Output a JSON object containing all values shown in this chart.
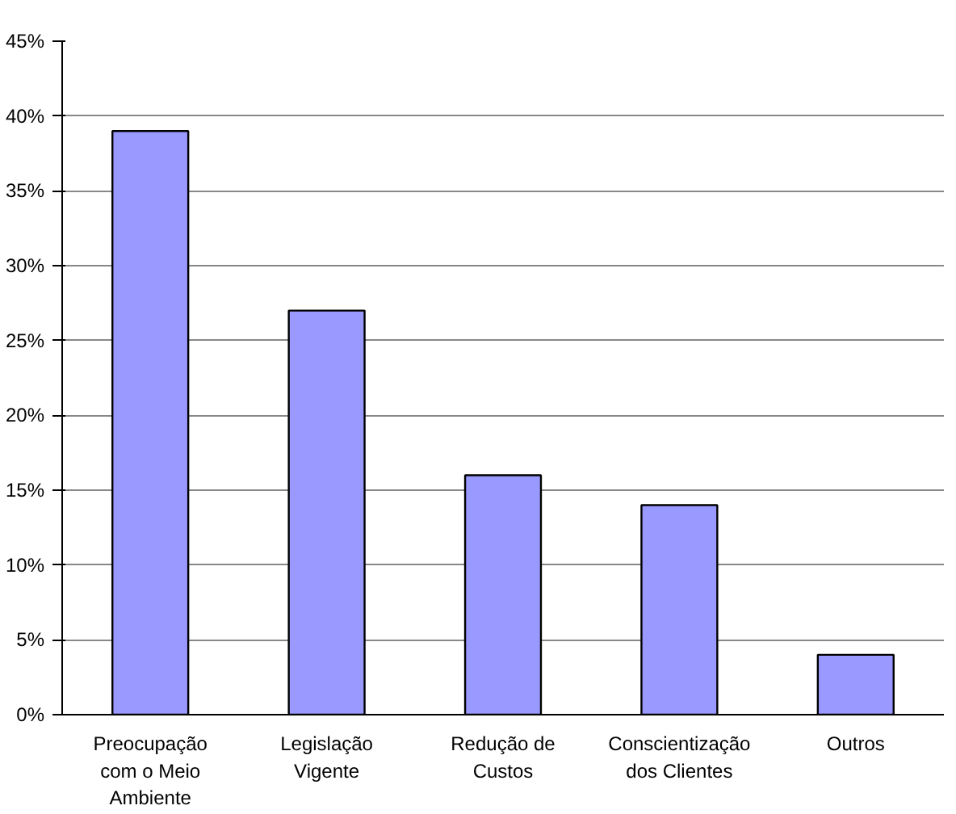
{
  "chart_data": {
    "type": "bar",
    "categories": [
      "Preocupação com o Meio Ambiente",
      "Legislação Vigente",
      "Redução de Custos",
      "Conscientização dos Clientes",
      "Outros"
    ],
    "values": [
      39,
      27,
      16,
      14,
      4
    ],
    "color": "#9999ff",
    "ylim": [
      0,
      45
    ],
    "yticks": [
      {
        "value": 0,
        "label": "0%"
      },
      {
        "value": 5,
        "label": "5%"
      },
      {
        "value": 10,
        "label": "10%"
      },
      {
        "value": 15,
        "label": "15%"
      },
      {
        "value": 20,
        "label": "20%"
      },
      {
        "value": 25,
        "label": "25%"
      },
      {
        "value": 30,
        "label": "30%"
      },
      {
        "value": 35,
        "label": "35%"
      },
      {
        "value": 40,
        "label": "40%"
      },
      {
        "value": 45,
        "label": "45%"
      }
    ],
    "grid": "y"
  }
}
